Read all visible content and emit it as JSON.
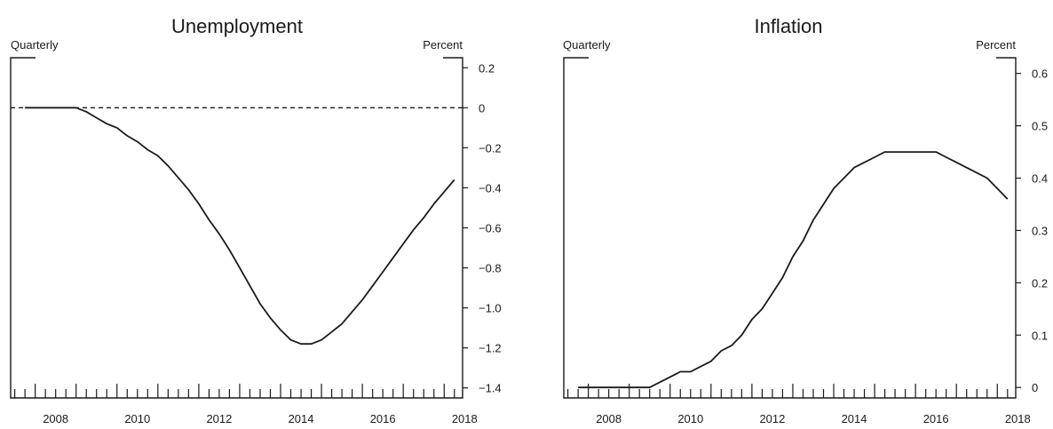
{
  "chart_data": [
    {
      "type": "line",
      "title": "Unemployment",
      "left_label": "Quarterly",
      "right_label": "Percent",
      "xlim": [
        2007.4,
        2018.45
      ],
      "ylim": [
        -1.45,
        0.25
      ],
      "yticks": [
        0.2,
        0,
        -0.2,
        -0.4,
        -0.6,
        -0.8,
        -1.0,
        -1.2,
        -1.4
      ],
      "ytick_labels": [
        "0.2",
        "0",
        "−0.2",
        "−0.4",
        "−0.6",
        "−0.8",
        "−1.0",
        "−1.2",
        "−1.4"
      ],
      "xtick_labels": [
        "2008",
        "2010",
        "2012",
        "2014",
        "2016",
        "2018"
      ],
      "xtick_years": [
        2008,
        2010,
        2012,
        2014,
        2016,
        2018
      ],
      "zero_line": true,
      "series": [
        {
          "x": [
            2007.75,
            2008.0,
            2008.25,
            2008.5,
            2008.75,
            2009.0,
            2009.25,
            2009.5,
            2009.75,
            2010.0,
            2010.25,
            2010.5,
            2010.75,
            2011.0,
            2011.25,
            2011.5,
            2011.75,
            2012.0,
            2012.25,
            2012.5,
            2012.75,
            2013.0,
            2013.25,
            2013.5,
            2013.75,
            2014.0,
            2014.25,
            2014.5,
            2014.75,
            2015.0,
            2015.25,
            2015.5,
            2015.75,
            2016.0,
            2016.25,
            2016.5,
            2016.75,
            2017.0,
            2017.25,
            2017.5,
            2017.75,
            2018.0,
            2018.25
          ],
          "y": [
            0,
            0,
            0,
            0,
            0,
            0,
            -0.02,
            -0.05,
            -0.08,
            -0.1,
            -0.14,
            -0.17,
            -0.21,
            -0.24,
            -0.29,
            -0.35,
            -0.41,
            -0.48,
            -0.56,
            -0.63,
            -0.71,
            -0.8,
            -0.89,
            -0.98,
            -1.05,
            -1.11,
            -1.16,
            -1.18,
            -1.18,
            -1.16,
            -1.12,
            -1.08,
            -1.02,
            -0.96,
            -0.89,
            -0.82,
            -0.75,
            -0.68,
            -0.61,
            -0.55,
            -0.48,
            -0.42,
            -0.36
          ]
        }
      ]
    },
    {
      "type": "line",
      "title": "Inflation",
      "left_label": "Quarterly",
      "right_label": "Percent",
      "xlim": [
        2007.4,
        2018.45
      ],
      "ylim": [
        -0.02,
        0.63
      ],
      "yticks": [
        0.6,
        0.5,
        0.4,
        0.3,
        0.2,
        0.1,
        0
      ],
      "ytick_labels": [
        "0.6",
        "0.5",
        "0.4",
        "0.3",
        "0.2",
        "0.1",
        "0"
      ],
      "xtick_labels": [
        "2008",
        "2010",
        "2012",
        "2014",
        "2016",
        "2018"
      ],
      "xtick_years": [
        2008,
        2010,
        2012,
        2014,
        2016,
        2018
      ],
      "zero_line": false,
      "series": [
        {
          "x": [
            2007.75,
            2008.0,
            2008.25,
            2008.5,
            2008.75,
            2009.0,
            2009.25,
            2009.5,
            2009.75,
            2010.0,
            2010.25,
            2010.5,
            2010.75,
            2011.0,
            2011.25,
            2011.5,
            2011.75,
            2012.0,
            2012.25,
            2012.5,
            2012.75,
            2013.0,
            2013.25,
            2013.5,
            2013.75,
            2014.0,
            2014.25,
            2014.5,
            2014.75,
            2015.0,
            2015.25,
            2015.5,
            2015.75,
            2016.0,
            2016.25,
            2016.5,
            2016.75,
            2017.0,
            2017.25,
            2017.5,
            2017.75,
            2018.0,
            2018.25
          ],
          "y": [
            0,
            0,
            0,
            0,
            0,
            0,
            0,
            0,
            0.01,
            0.02,
            0.03,
            0.03,
            0.04,
            0.05,
            0.07,
            0.08,
            0.1,
            0.13,
            0.15,
            0.18,
            0.21,
            0.25,
            0.28,
            0.32,
            0.35,
            0.38,
            0.4,
            0.42,
            0.43,
            0.44,
            0.45,
            0.45,
            0.45,
            0.45,
            0.45,
            0.45,
            0.44,
            0.43,
            0.42,
            0.41,
            0.4,
            0.38,
            0.36
          ]
        }
      ]
    }
  ]
}
